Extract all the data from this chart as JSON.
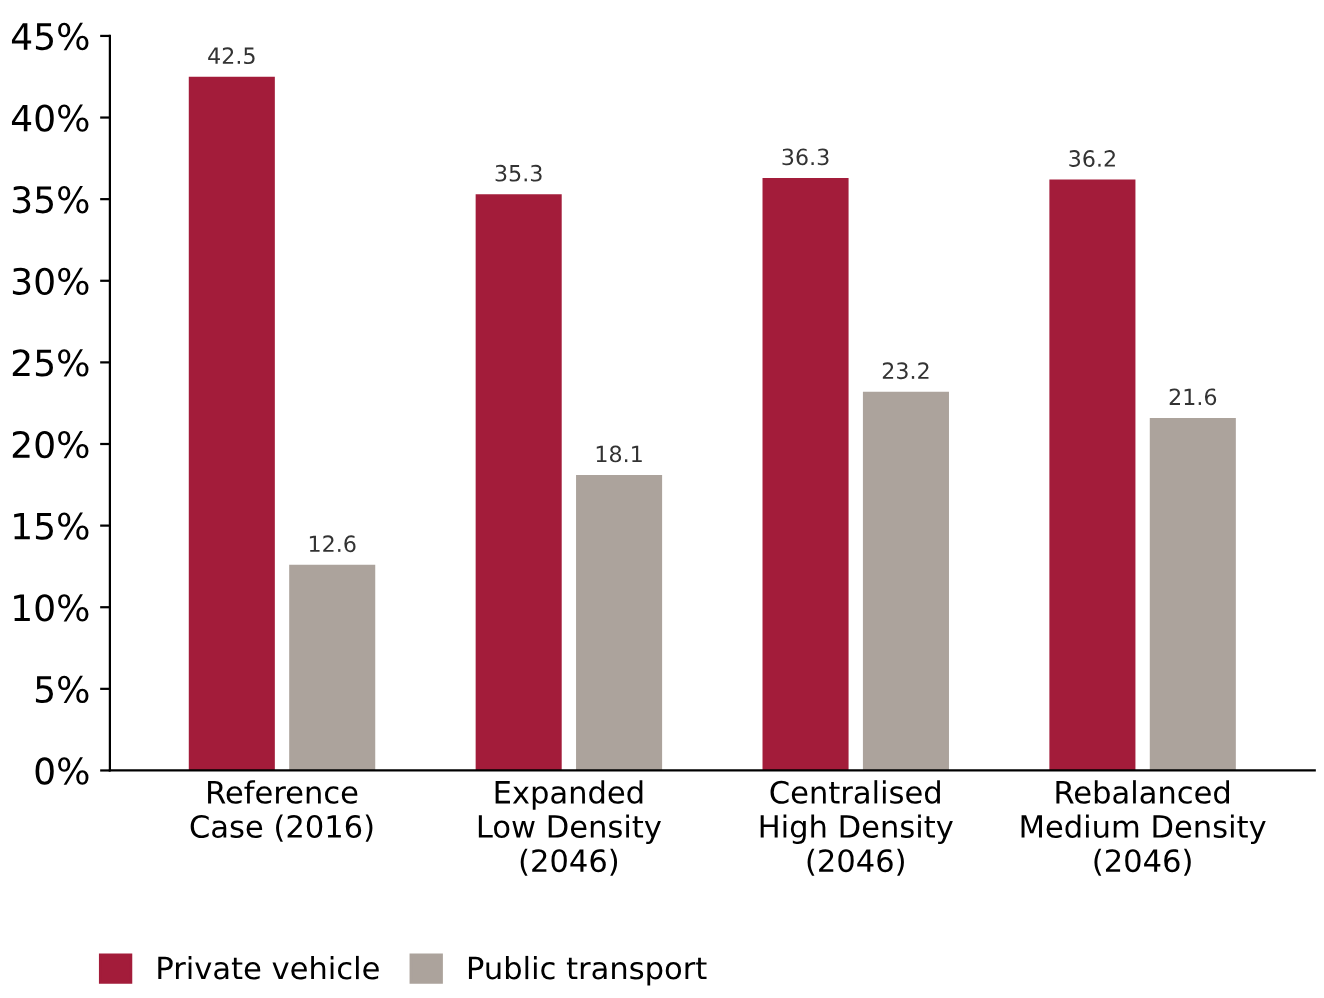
{
  "chart_data": {
    "type": "bar",
    "categories": [
      "Reference\nCase (2016)",
      "Expanded\nLow Density\n(2046)",
      "Centralised\nHigh Density\n(2046)",
      "Rebalanced\nMedium Density\n(2046)"
    ],
    "series": [
      {
        "name": "Private vehicle",
        "color": "#a31c3a",
        "values": [
          42.5,
          35.3,
          36.3,
          36.2
        ]
      },
      {
        "name": "Public transport",
        "color": "#aca39c",
        "values": [
          12.6,
          18.1,
          23.2,
          21.6
        ]
      }
    ],
    "ylim": [
      0,
      45
    ],
    "yticks": [
      {
        "value": 0,
        "label": "0%"
      },
      {
        "value": 5,
        "label": "5%"
      },
      {
        "value": 10,
        "label": "10%"
      },
      {
        "value": 15,
        "label": "15%"
      },
      {
        "value": 20,
        "label": "20%"
      },
      {
        "value": 25,
        "label": "25%"
      },
      {
        "value": 30,
        "label": "30%"
      },
      {
        "value": 35,
        "label": "35%"
      },
      {
        "value": 40,
        "label": "40%"
      },
      {
        "value": 45,
        "label": "45%"
      }
    ],
    "data_labels": true,
    "grid": false,
    "legend": "bottom left"
  }
}
